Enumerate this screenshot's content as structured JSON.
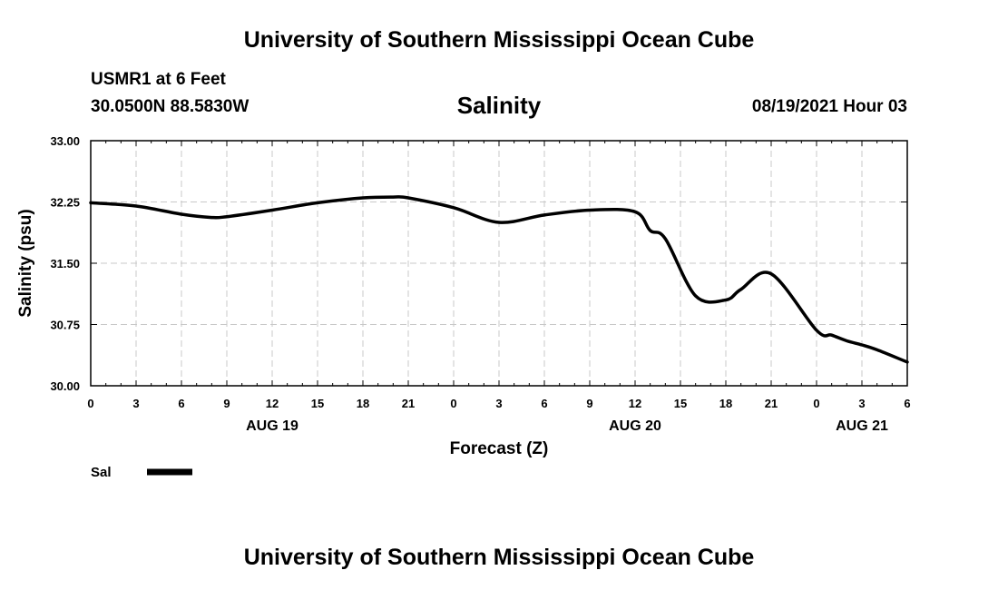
{
  "header": {
    "title_top": "University of Southern Mississippi Ocean Cube",
    "station": "USMR1 at 6 Feet",
    "coords": "30.0500N  88.5830W",
    "timestamp": "08/19/2021 Hour 03",
    "title_bottom": "University of Southern Mississippi Ocean Cube"
  },
  "chart_data": {
    "type": "line",
    "title": "Salinity",
    "xlabel": "Forecast (Z)",
    "ylabel": "Salinity (psu)",
    "ylim": [
      30.0,
      33.0
    ],
    "yticks": [
      "30.00",
      "30.75",
      "31.50",
      "32.25",
      "33.00"
    ],
    "xlim": [
      0,
      54
    ],
    "xtick_labels": [
      "0",
      "3",
      "6",
      "9",
      "12",
      "15",
      "18",
      "21",
      "0",
      "3",
      "6",
      "9",
      "12",
      "15",
      "18",
      "21",
      "0",
      "3",
      "6"
    ],
    "date_labels": [
      {
        "label": "AUG 19",
        "hour": 12
      },
      {
        "label": "AUG 20",
        "hour": 36
      },
      {
        "label": "AUG 21",
        "hour": 51
      }
    ],
    "grid": true,
    "legend": [
      {
        "name": "Sal",
        "color": "#000000"
      }
    ],
    "series": [
      {
        "name": "Sal",
        "color": "#000000",
        "x": [
          0,
          3,
          6,
          8,
          9,
          12,
          15,
          18,
          20,
          21,
          24,
          27,
          30,
          33,
          36,
          37,
          38,
          40,
          42,
          43,
          45,
          48,
          49,
          50,
          51,
          52,
          54
        ],
        "y": [
          32.24,
          32.2,
          32.1,
          32.06,
          32.07,
          32.15,
          32.24,
          32.3,
          32.31,
          32.3,
          32.18,
          32.0,
          32.09,
          32.15,
          32.13,
          31.9,
          31.8,
          31.1,
          31.05,
          31.18,
          31.37,
          30.68,
          30.62,
          30.55,
          30.5,
          30.44,
          30.29
        ]
      }
    ]
  }
}
